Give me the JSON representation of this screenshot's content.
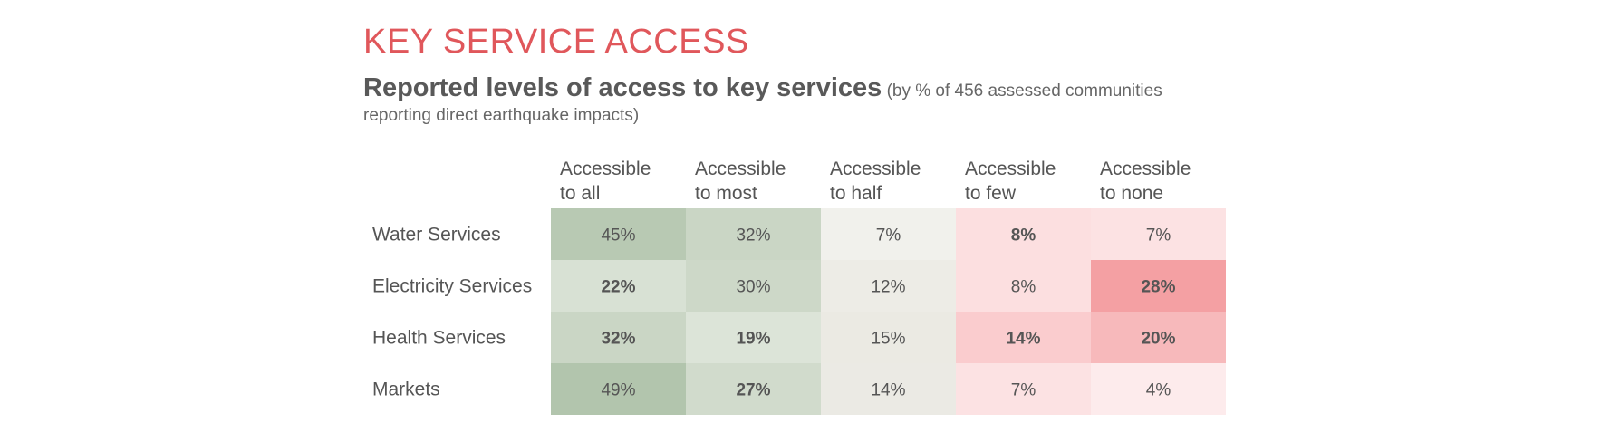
{
  "header": {
    "title": "KEY SERVICE ACCESS",
    "subtitle_lead": "Reported levels of access to key services",
    "subtitle_rest": "(by % of 456 assessed communities reporting direct earthquake impacts)"
  },
  "chart_data": {
    "type": "heatmap",
    "columns": [
      [
        "Accessible",
        "to all"
      ],
      [
        "Accessible",
        "to most"
      ],
      [
        "Accessible",
        "to half"
      ],
      [
        "Accessible",
        "to few"
      ],
      [
        "Accessible",
        "to none"
      ]
    ],
    "rows": [
      "Water Services",
      "Electricity Services",
      "Health Services",
      "Markets"
    ],
    "values": [
      [
        45,
        32,
        7,
        8,
        7
      ],
      [
        22,
        30,
        12,
        8,
        28
      ],
      [
        32,
        19,
        15,
        14,
        20
      ],
      [
        49,
        27,
        14,
        7,
        4
      ]
    ],
    "labels": [
      [
        "45%",
        "32%",
        "7%",
        "8%",
        "7%"
      ],
      [
        "22%",
        "30%",
        "12%",
        "8%",
        "28%"
      ],
      [
        "32%",
        "19%",
        "15%",
        "14%",
        "20%"
      ],
      [
        "49%",
        "27%",
        "14%",
        "7%",
        "4%"
      ]
    ],
    "bold": [
      [
        false,
        false,
        false,
        true,
        false
      ],
      [
        true,
        false,
        false,
        false,
        true
      ],
      [
        true,
        true,
        false,
        true,
        true
      ],
      [
        false,
        true,
        false,
        false,
        false
      ]
    ],
    "colors": {
      "positive": "#b2c5ad",
      "neutral": "#f7f7f3",
      "negative": "#f4a0a3",
      "text": "#555555"
    }
  }
}
